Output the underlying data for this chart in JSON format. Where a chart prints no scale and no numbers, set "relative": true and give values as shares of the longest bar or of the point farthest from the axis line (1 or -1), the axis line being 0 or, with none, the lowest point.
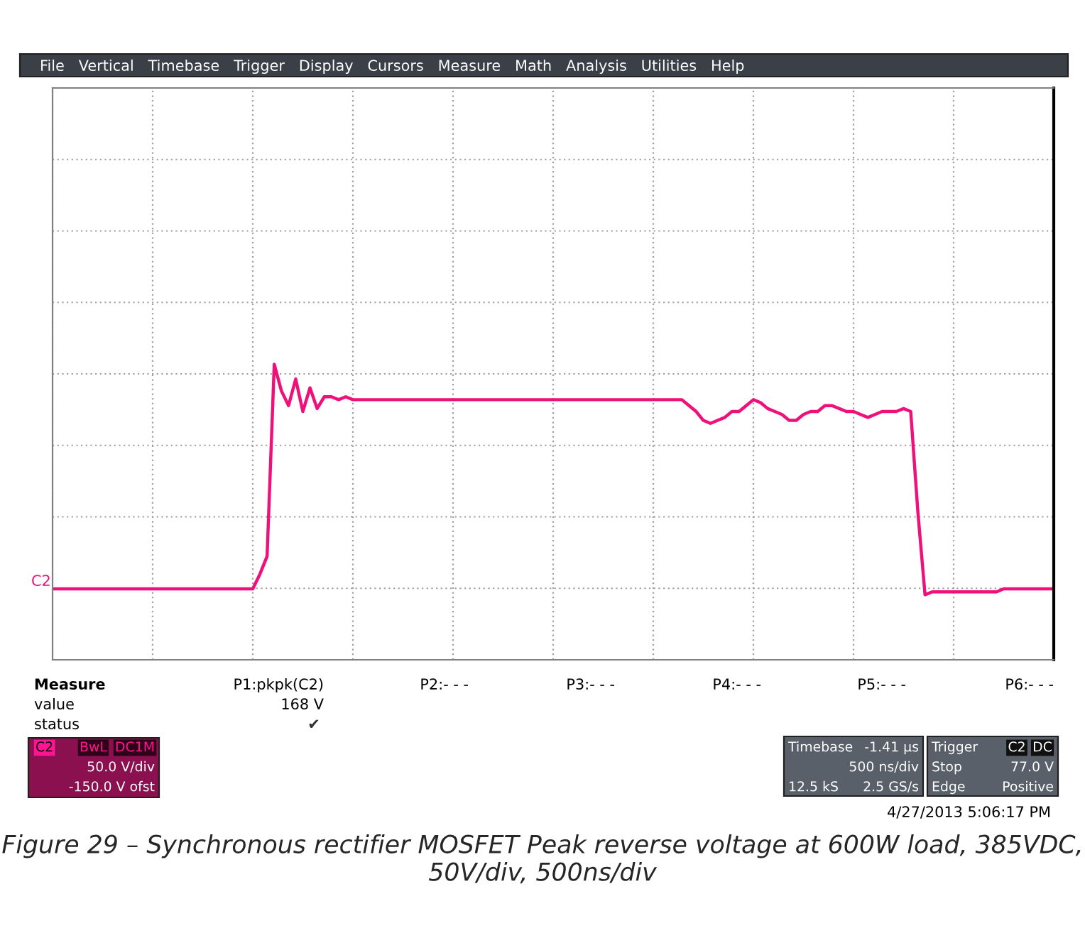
{
  "chart_data": {
    "type": "line",
    "relative": true,
    "grid": true,
    "title": "Figure 29 – Synchronous rectifier MOSFET Peak reverse voltage at 600W load, 385VDC, 50V/div, 500ns/div",
    "categories": [
      null,
      null,
      null,
      null,
      null,
      null,
      null,
      null,
      null,
      null,
      null,
      null,
      null,
      null,
      null,
      null,
      null,
      null,
      null,
      null,
      null,
      null,
      null,
      null,
      null,
      null,
      null,
      null,
      null,
      null,
      null,
      null,
      null,
      null,
      null,
      null,
      null,
      null,
      null,
      null,
      null,
      null,
      null,
      null,
      null,
      null,
      null,
      null,
      null,
      null,
      null,
      null,
      null,
      null,
      null,
      null,
      null,
      null,
      null,
      null,
      null,
      null,
      null,
      null,
      null,
      null,
      null,
      null,
      null,
      null,
      null,
      null,
      null,
      null,
      null,
      null,
      null,
      null,
      null,
      null,
      null,
      null,
      null,
      null,
      null,
      null,
      null,
      null,
      null,
      null,
      null,
      null,
      null,
      null,
      null,
      null,
      null,
      null,
      null,
      null,
      null,
      null,
      null,
      null,
      null,
      null,
      null,
      null,
      null,
      null,
      null,
      null,
      null,
      null,
      null,
      null,
      null,
      null,
      null,
      null,
      null,
      null,
      null,
      null,
      null,
      null,
      null,
      null,
      null,
      null,
      null,
      null,
      null,
      null,
      null,
      null,
      null,
      null,
      null,
      null,
      null
    ],
    "series": [
      {
        "color": "#f0107a",
        "values": [
          0.24,
          0.24,
          0.24,
          0.24,
          0.24,
          0.24,
          0.24,
          0.24,
          0.24,
          0.24,
          0.24,
          0.24,
          0.24,
          0.24,
          0.24,
          0.24,
          0.24,
          0.24,
          0.24,
          0.24,
          0.24,
          0.24,
          0.24,
          0.24,
          0.24,
          0.24,
          0.24,
          0.24,
          0.24,
          0.29,
          0.35,
          1.0,
          0.91,
          0.86,
          0.95,
          0.84,
          0.92,
          0.85,
          0.89,
          0.89,
          0.88,
          0.89,
          0.88,
          0.88,
          0.88,
          0.88,
          0.88,
          0.88,
          0.88,
          0.88,
          0.88,
          0.88,
          0.88,
          0.88,
          0.88,
          0.88,
          0.88,
          0.88,
          0.88,
          0.88,
          0.88,
          0.88,
          0.88,
          0.88,
          0.88,
          0.88,
          0.88,
          0.88,
          0.88,
          0.88,
          0.88,
          0.88,
          0.88,
          0.88,
          0.88,
          0.88,
          0.88,
          0.88,
          0.88,
          0.88,
          0.88,
          0.88,
          0.88,
          0.88,
          0.88,
          0.88,
          0.88,
          0.88,
          0.88,
          0.86,
          0.84,
          0.81,
          0.8,
          0.81,
          0.82,
          0.84,
          0.84,
          0.86,
          0.88,
          0.87,
          0.85,
          0.84,
          0.83,
          0.81,
          0.81,
          0.83,
          0.84,
          0.84,
          0.86,
          0.86,
          0.85,
          0.84,
          0.84,
          0.83,
          0.82,
          0.83,
          0.84,
          0.84,
          0.84,
          0.85,
          0.84,
          0.5,
          0.22,
          0.23,
          0.23,
          0.23,
          0.23,
          0.23,
          0.23,
          0.23,
          0.23,
          0.23,
          0.23,
          0.24,
          0.24,
          0.24,
          0.24,
          0.24,
          0.24,
          0.24,
          0.24
        ]
      }
    ],
    "annotations": [
      "File   Vertical   Timebase   Trigger   Display   Cursors   Measure   Math   Analysis   Utilities   Help",
      "C2",
      "Measure",
      "value",
      "status",
      "P1:pkpk(C2)",
      "168 V",
      "✔",
      "P2:- - -",
      "P3:- - -",
      "P4:- - -",
      "P5:- - -",
      "P6:- - -",
      "C2",
      "BwL",
      "DC1M",
      "50.0 V/div",
      "-150.0 V ofst",
      "Timebase",
      "-1.41 µs",
      "500 ns/div",
      "12.5 kS",
      "2.5 GS/s",
      "Trigger",
      "C2",
      "DC",
      "Stop",
      "77.0 V",
      "Edge",
      "Positive",
      "4/27/2013 5:06:17 PM"
    ]
  }
}
